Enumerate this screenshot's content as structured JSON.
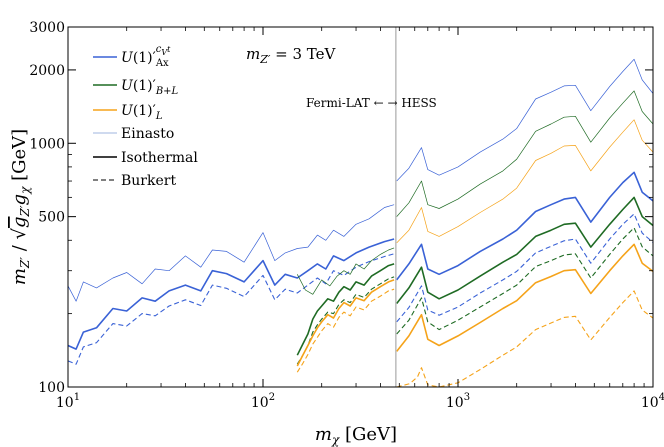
{
  "chart_data": {
    "type": "line",
    "xlabel": "m_χ [GeV]",
    "ylabel": "m_Z′ / √(g_Z′ g_χ) [GeV]",
    "xscale": "log",
    "yscale": "log",
    "xlim": [
      10,
      10000
    ],
    "ylim": [
      100,
      3000
    ],
    "x_ticks": [
      "10^1",
      "10^2",
      "10^3",
      "10^4"
    ],
    "y_ticks": [
      "100",
      "500",
      "1000",
      "2000",
      "3000"
    ],
    "annotation": "m_Z′ = 3 TeV",
    "divider": {
      "x": 480,
      "label": "Fermi-LAT ← → HESS",
      "color": "#bbbbbb"
    },
    "legend": {
      "placement": "top-left",
      "entries": [
        {
          "label": "U(1)′_Ax^{c_V^t}",
          "color": "#3a62d6",
          "style": "solid"
        },
        {
          "label": "U(1)′_B+L",
          "color": "#1f6b24",
          "style": "solid"
        },
        {
          "label": "U(1)′_L",
          "color": "#f5a31a",
          "style": "solid"
        },
        {
          "label": "Einasto",
          "color": "#7f9bd4",
          "style": "thin"
        },
        {
          "label": "Isothermal",
          "color": "#000000",
          "style": "solid"
        },
        {
          "label": "Burkert",
          "color": "#000000",
          "style": "dashed"
        }
      ]
    },
    "series": [
      {
        "model": "Ax",
        "profile": "Einasto",
        "color": "#3a62d6",
        "width": 0.7,
        "dash": "",
        "x": [
          10,
          11,
          12,
          14,
          17,
          20,
          24,
          28,
          33,
          40,
          48,
          55,
          65,
          80,
          100,
          115,
          130,
          150,
          170,
          190,
          210,
          230,
          260,
          300,
          350,
          420,
          470
        ],
        "y": [
          260,
          225,
          270,
          255,
          280,
          295,
          265,
          305,
          300,
          345,
          310,
          365,
          360,
          325,
          430,
          330,
          355,
          370,
          375,
          420,
          400,
          440,
          415,
          465,
          490,
          545,
          560
        ]
      },
      {
        "model": "Ax",
        "profile": "Einasto",
        "color": "#3a62d6",
        "width": 0.7,
        "dash": "",
        "x": [
          485,
          560,
          650,
          700,
          800,
          1000,
          1300,
          1700,
          2000,
          2500,
          3000,
          3500,
          4000,
          4800,
          6000,
          7000,
          8000,
          8800,
          10000
        ],
        "y": [
          700,
          790,
          960,
          780,
          740,
          800,
          920,
          1040,
          1150,
          1520,
          1620,
          1720,
          1730,
          1360,
          1710,
          1970,
          2210,
          1820,
          1600
        ]
      },
      {
        "model": "Ax",
        "profile": "Isothermal",
        "color": "#3a62d6",
        "width": 1.6,
        "dash": "",
        "x": [
          10,
          11,
          12,
          14,
          17,
          20,
          24,
          28,
          33,
          40,
          48,
          55,
          65,
          80,
          100,
          115,
          130,
          150,
          170,
          190,
          210,
          230,
          260,
          300,
          350,
          420,
          470
        ],
        "y": [
          148,
          143,
          168,
          175,
          210,
          205,
          232,
          225,
          248,
          262,
          248,
          300,
          292,
          270,
          330,
          262,
          290,
          280,
          300,
          320,
          305,
          345,
          330,
          355,
          375,
          395,
          405
        ]
      },
      {
        "model": "Ax",
        "profile": "Isothermal",
        "color": "#3a62d6",
        "width": 1.6,
        "dash": "",
        "x": [
          485,
          560,
          650,
          700,
          800,
          1000,
          1300,
          1700,
          2000,
          2500,
          3000,
          3500,
          4000,
          4800,
          6000,
          7000,
          8000,
          8800,
          10000
        ],
        "y": [
          275,
          320,
          385,
          305,
          290,
          315,
          360,
          405,
          440,
          525,
          560,
          590,
          600,
          475,
          600,
          690,
          760,
          630,
          580
        ]
      },
      {
        "model": "Ax",
        "profile": "Burkert",
        "color": "#3a62d6",
        "width": 1.1,
        "dash": "5,3",
        "x": [
          10,
          11,
          12,
          14,
          17,
          20,
          24,
          28,
          33,
          40,
          48,
          55,
          65,
          80,
          100,
          115,
          130,
          150,
          170,
          190,
          210,
          230,
          260,
          300,
          350,
          420,
          470
        ],
        "y": [
          128,
          124,
          146,
          152,
          182,
          178,
          200,
          196,
          215,
          228,
          216,
          262,
          254,
          235,
          287,
          228,
          252,
          243,
          262,
          280,
          265,
          300,
          287,
          310,
          327,
          343,
          352
        ]
      },
      {
        "model": "Ax",
        "profile": "Burkert",
        "color": "#3a62d6",
        "width": 1.1,
        "dash": "5,3",
        "x": [
          485,
          560,
          650,
          700,
          800,
          1000,
          1300,
          1700,
          2000,
          2500,
          3000,
          3500,
          4000,
          4800,
          6000,
          7000,
          8000,
          8800,
          10000
        ],
        "y": [
          185,
          212,
          260,
          207,
          197,
          213,
          243,
          275,
          298,
          355,
          378,
          398,
          405,
          322,
          405,
          465,
          513,
          428,
          392
        ]
      },
      {
        "model": "B+L",
        "profile": "Einasto",
        "color": "#1f6b24",
        "width": 0.7,
        "dash": "",
        "x": [
          150,
          165,
          180,
          200,
          220,
          240,
          260,
          280,
          300,
          330,
          360,
          400,
          440,
          470
        ],
        "y": [
          290,
          250,
          240,
          275,
          260,
          285,
          300,
          290,
          320,
          305,
          330,
          350,
          365,
          372
        ]
      },
      {
        "model": "B+L",
        "profile": "Einasto",
        "color": "#1f6b24",
        "width": 0.7,
        "dash": "",
        "x": [
          485,
          560,
          650,
          700,
          800,
          1000,
          1300,
          1700,
          2000,
          2500,
          3000,
          3500,
          4000,
          4800,
          6000,
          7000,
          8000,
          8800,
          10000
        ],
        "y": [
          500,
          570,
          700,
          560,
          540,
          590,
          680,
          770,
          860,
          1120,
          1200,
          1280,
          1290,
          1010,
          1270,
          1460,
          1640,
          1350,
          1200
        ]
      },
      {
        "model": "B+L",
        "profile": "Isothermal",
        "color": "#1f6b24",
        "width": 1.6,
        "dash": "",
        "x": [
          150,
          160,
          170,
          180,
          190,
          200,
          215,
          230,
          245,
          260,
          280,
          300,
          330,
          360,
          400,
          440,
          470
        ],
        "y": [
          135,
          150,
          165,
          190,
          205,
          215,
          230,
          225,
          245,
          258,
          250,
          270,
          262,
          285,
          300,
          315,
          320
        ]
      },
      {
        "model": "B+L",
        "profile": "Isothermal",
        "color": "#1f6b24",
        "width": 1.6,
        "dash": "",
        "x": [
          485,
          560,
          650,
          700,
          800,
          1000,
          1300,
          1700,
          2000,
          2500,
          3000,
          3500,
          4000,
          4800,
          6000,
          7000,
          8000,
          8800,
          10000
        ],
        "y": [
          220,
          255,
          310,
          245,
          230,
          250,
          285,
          325,
          350,
          415,
          440,
          465,
          470,
          375,
          465,
          535,
          600,
          500,
          460
        ]
      },
      {
        "model": "B+L",
        "profile": "Burkert",
        "color": "#1f6b24",
        "width": 1.1,
        "dash": "5,3",
        "x": [
          150,
          160,
          170,
          180,
          190,
          200,
          215,
          230,
          245,
          260,
          280,
          300,
          330,
          360,
          400,
          440,
          470
        ],
        "y": [
          124,
          135,
          148,
          168,
          180,
          190,
          203,
          200,
          218,
          228,
          222,
          240,
          233,
          252,
          265,
          278,
          283
        ]
      },
      {
        "model": "B+L",
        "profile": "Burkert",
        "color": "#1f6b24",
        "width": 1.1,
        "dash": "5,3",
        "x": [
          485,
          560,
          650,
          700,
          800,
          1000,
          1300,
          1700,
          2000,
          2500,
          3000,
          3500,
          4000,
          4800,
          6000,
          7000,
          8000,
          8800,
          10000
        ],
        "y": [
          165,
          188,
          232,
          185,
          172,
          188,
          213,
          242,
          262,
          312,
          330,
          348,
          352,
          280,
          350,
          405,
          450,
          376,
          345
        ]
      },
      {
        "model": "L",
        "profile": "Einasto",
        "color": "#f5a31a",
        "width": 0.7,
        "dash": "",
        "x": [
          485,
          560,
          650,
          700,
          800,
          1000,
          1300,
          1700,
          2000,
          2500,
          3000,
          3500,
          4000,
          4800,
          6000,
          7000,
          8000,
          8800,
          10000
        ],
        "y": [
          390,
          440,
          545,
          435,
          415,
          455,
          520,
          590,
          655,
          850,
          910,
          975,
          980,
          770,
          965,
          1110,
          1250,
          1030,
          920
        ]
      },
      {
        "model": "L",
        "profile": "Isothermal",
        "color": "#f5a31a",
        "width": 1.6,
        "dash": "",
        "x": [
          150,
          160,
          170,
          180,
          190,
          200,
          215,
          230,
          245,
          260,
          280,
          300,
          330,
          360,
          400,
          440,
          470
        ],
        "y": [
          122,
          135,
          148,
          162,
          175,
          185,
          198,
          192,
          210,
          222,
          215,
          232,
          226,
          245,
          258,
          270,
          275
        ]
      },
      {
        "model": "L",
        "profile": "Isothermal",
        "color": "#f5a31a",
        "width": 1.6,
        "dash": "",
        "x": [
          485,
          560,
          650,
          700,
          800,
          1000,
          1300,
          1700,
          2000,
          2500,
          3000,
          3500,
          4000,
          4800,
          6000,
          7000,
          8000,
          8800,
          10000
        ],
        "y": [
          140,
          162,
          198,
          157,
          148,
          162,
          184,
          210,
          226,
          268,
          284,
          300,
          303,
          242,
          300,
          345,
          385,
          322,
          298
        ]
      },
      {
        "model": "L",
        "profile": "Burkert",
        "color": "#f5a31a",
        "width": 1.1,
        "dash": "5,3",
        "x": [
          150,
          160,
          170,
          180,
          190,
          200,
          215,
          230,
          245,
          260,
          280,
          300,
          330,
          360,
          400,
          440,
          470
        ],
        "y": [
          115,
          125,
          136,
          150,
          160,
          170,
          182,
          176,
          193,
          203,
          196,
          213,
          207,
          225,
          236,
          248,
          252
        ]
      },
      {
        "model": "L",
        "profile": "Burkert",
        "color": "#f5a31a",
        "width": 1.1,
        "dash": "5,3",
        "x": [
          485,
          560,
          580,
          620,
          650,
          700,
          800,
          1000,
          1300,
          1700,
          2000,
          2500,
          3000,
          3500,
          4000,
          4800,
          6000,
          7000,
          8000,
          8800,
          10000
        ],
        "y": [
          100,
          103,
          105,
          110,
          120,
          102,
          100,
          104,
          118,
          135,
          146,
          172,
          183,
          193,
          195,
          156,
          193,
          222,
          248,
          207,
          192
        ]
      }
    ]
  }
}
